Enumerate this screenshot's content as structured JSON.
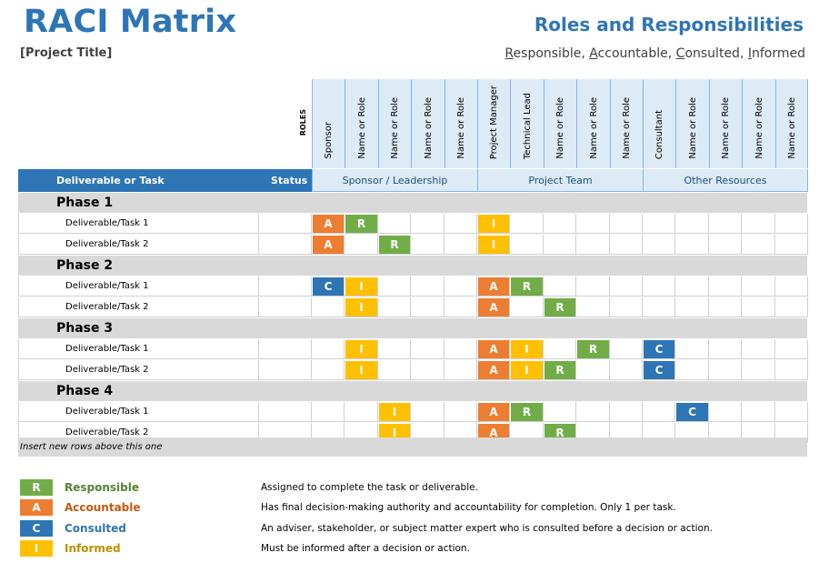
{
  "header": {
    "title": "RACI Matrix",
    "project_title": "[Project Title]",
    "heading": "Roles and Responsibilities",
    "legend_words": [
      {
        "first": "R",
        "rest": "esponsible, "
      },
      {
        "first": "A",
        "rest": "ccountable, "
      },
      {
        "first": "C",
        "rest": "onsulted, "
      },
      {
        "first": "I",
        "rest": "nformed"
      }
    ]
  },
  "table": {
    "roles_label": "ROLES",
    "deliverable_header": "Deliverable or Task",
    "status_header": "Status",
    "roles": [
      "Sponsor",
      "Name or Role",
      "Name or Role",
      "Name or Role",
      "Name or Role",
      "Project Manager",
      "Technical Lead",
      "Name or Role",
      "Name or Role",
      "Name or Role",
      "Consultant",
      "Name or Role",
      "Name or Role",
      "Name or Role",
      "Name or Role"
    ],
    "groups": [
      {
        "label": "Sponsor / Leadership",
        "span": 5
      },
      {
        "label": "Project Team",
        "span": 5
      },
      {
        "label": "Other Resources",
        "span": 5
      }
    ],
    "phases": [
      {
        "name": "Phase 1",
        "tasks": [
          {
            "name": "Deliverable/Task 1",
            "status": "",
            "cells": [
              "A",
              "R",
              "",
              "",
              "",
              "I",
              "",
              "",
              "",
              "",
              "",
              "",
              "",
              "",
              ""
            ]
          },
          {
            "name": "Deliverable/Task 2",
            "status": "",
            "cells": [
              "A",
              "",
              "R",
              "",
              "",
              "I",
              "",
              "",
              "",
              "",
              "",
              "",
              "",
              "",
              ""
            ]
          }
        ]
      },
      {
        "name": "Phase 2",
        "tasks": [
          {
            "name": "Deliverable/Task 1",
            "status": "",
            "cells": [
              "C",
              "I",
              "",
              "",
              "",
              "A",
              "R",
              "",
              "",
              "",
              "",
              "",
              "",
              "",
              ""
            ]
          },
          {
            "name": "Deliverable/Task 2",
            "status": "",
            "cells": [
              "",
              "I",
              "",
              "",
              "",
              "A",
              "",
              "R",
              "",
              "",
              "",
              "",
              "",
              "",
              ""
            ]
          }
        ]
      },
      {
        "name": "Phase 3",
        "tasks": [
          {
            "name": "Deliverable/Task 1",
            "status": "",
            "cells": [
              "",
              "I",
              "",
              "",
              "",
              "A",
              "I",
              "",
              "R",
              "",
              "C",
              "",
              "",
              "",
              ""
            ]
          },
          {
            "name": "Deliverable/Task 2",
            "status": "",
            "cells": [
              "",
              "I",
              "",
              "",
              "",
              "A",
              "I",
              "R",
              "",
              "",
              "C",
              "",
              "",
              "",
              ""
            ]
          }
        ]
      },
      {
        "name": "Phase 4",
        "tasks": [
          {
            "name": "Deliverable/Task 1",
            "status": "",
            "cells": [
              "",
              "",
              "I",
              "",
              "",
              "A",
              "R",
              "",
              "",
              "",
              "",
              "C",
              "",
              "",
              ""
            ]
          },
          {
            "name": "Deliverable/Task 2",
            "status": "",
            "cells": [
              "",
              "",
              "I",
              "",
              "",
              "A",
              "",
              "R",
              "",
              "",
              "",
              "",
              "",
              "",
              ""
            ]
          }
        ]
      }
    ],
    "footer_note": "Insert new rows above this one"
  },
  "colors": {
    "R": "#70ad47",
    "A": "#ed7d31",
    "C": "#2e75b6",
    "I": "#ffc000"
  },
  "legend": [
    {
      "code": "R",
      "name": "Responsible",
      "desc": "Assigned to complete the task or deliverable.",
      "text_color": "#548235"
    },
    {
      "code": "A",
      "name": "Accountable",
      "desc": "Has final decision-making authority and accountability for completion. Only 1 per task.",
      "text_color": "#c55a11"
    },
    {
      "code": "C",
      "name": "Consulted",
      "desc": "An adviser, stakeholder, or subject matter expert who is consulted before a decision or action.",
      "text_color": "#2e75b6"
    },
    {
      "code": "I",
      "name": "Informed",
      "desc": "Must be informed after a decision or action.",
      "text_color": "#bf8f00"
    }
  ]
}
